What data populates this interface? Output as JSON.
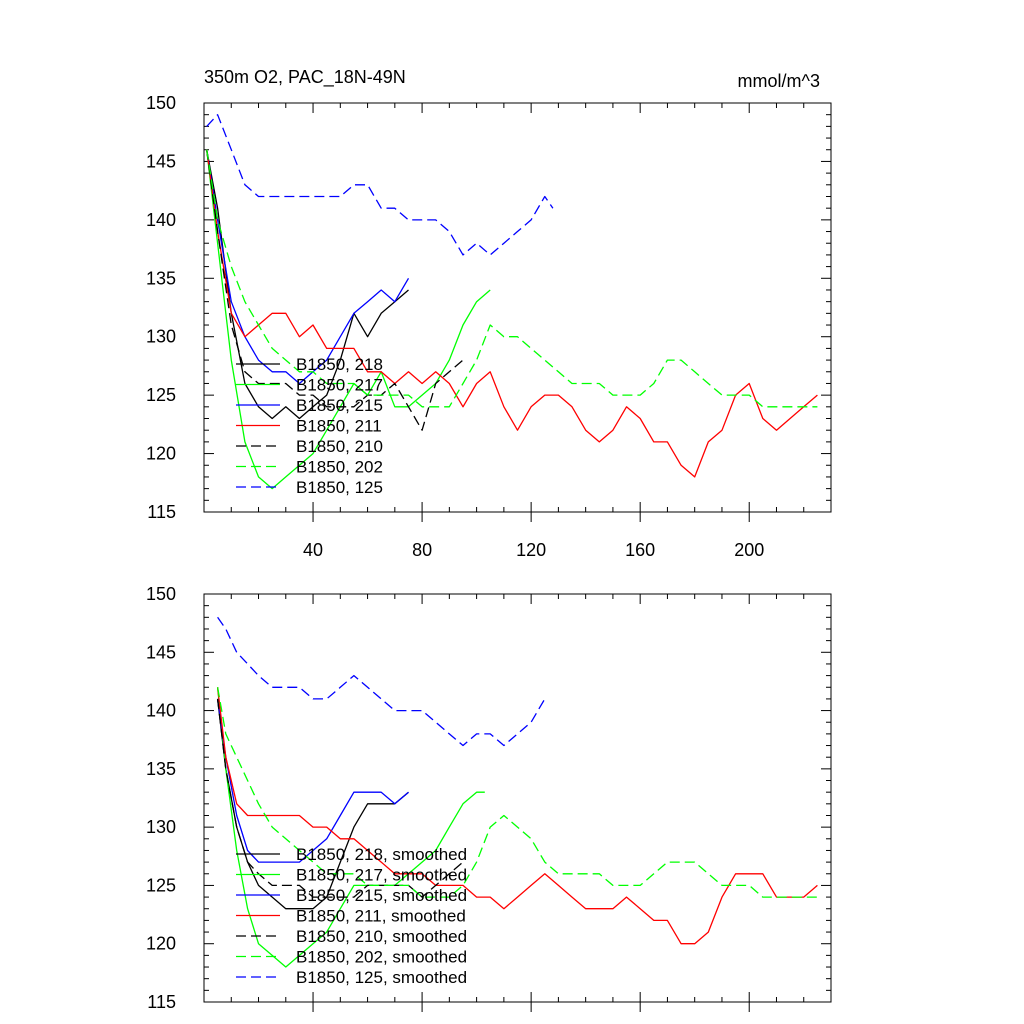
{
  "chart_data": [
    {
      "type": "line",
      "title_left": "350m O2, PAC_18N-49N",
      "title_right": "mmol/m^3",
      "xlabel": "",
      "ylabel": "",
      "xlim": [
        0,
        230
      ],
      "ylim": [
        115,
        150
      ],
      "x_ticks": [
        40,
        80,
        120,
        160,
        200
      ],
      "x_tick_labels": [
        "40",
        "80",
        "120",
        "160",
        "200"
      ],
      "y_ticks": [
        115,
        120,
        125,
        130,
        135,
        140,
        145,
        150
      ],
      "y_tick_labels": [
        "115",
        "120",
        "125",
        "130",
        "135",
        "140",
        "145",
        "150"
      ],
      "legend_position": "lower-left",
      "series": [
        {
          "name": "B1850, 218",
          "color": "#000000",
          "dash": "solid",
          "x": [
            1,
            5,
            10,
            15,
            20,
            25,
            30,
            35,
            40,
            45,
            50,
            55,
            60,
            65,
            70,
            75
          ],
          "y": [
            146,
            141,
            132,
            126,
            124,
            123,
            124,
            123,
            124,
            125,
            128,
            132,
            130,
            132,
            133,
            134
          ]
        },
        {
          "name": "B1850, 217",
          "color": "#00ff00",
          "dash": "solid",
          "x": [
            1,
            5,
            10,
            15,
            20,
            25,
            30,
            35,
            40,
            45,
            50,
            55,
            60,
            65,
            70,
            75,
            80,
            85,
            90,
            95,
            100,
            105
          ],
          "y": [
            146,
            138,
            128,
            121,
            118,
            117,
            118,
            119,
            120,
            122,
            124,
            126,
            125,
            127,
            124,
            124,
            125,
            126,
            128,
            131,
            133,
            134
          ]
        },
        {
          "name": "B1850, 215",
          "color": "#0000ff",
          "dash": "solid",
          "x": [
            1,
            5,
            10,
            15,
            20,
            25,
            30,
            35,
            40,
            45,
            50,
            55,
            60,
            65,
            70,
            75
          ],
          "y": [
            146,
            140,
            133,
            130,
            128,
            127,
            127,
            126,
            127,
            128,
            130,
            132,
            133,
            134,
            133,
            135
          ]
        },
        {
          "name": "B1850, 211",
          "color": "#ff0000",
          "dash": "solid",
          "x": [
            1,
            5,
            10,
            15,
            20,
            25,
            30,
            35,
            40,
            45,
            50,
            55,
            60,
            65,
            70,
            75,
            80,
            85,
            90,
            95,
            100,
            105,
            110,
            115,
            120,
            125,
            130,
            135,
            140,
            145,
            150,
            155,
            160,
            165,
            170,
            175,
            180,
            185,
            190,
            195,
            200,
            205,
            210,
            215,
            220,
            225
          ],
          "y": [
            146,
            139,
            132,
            130,
            131,
            132,
            132,
            130,
            131,
            129,
            129,
            129,
            127,
            127,
            126,
            127,
            126,
            127,
            126,
            124,
            126,
            127,
            124,
            122,
            124,
            125,
            125,
            124,
            122,
            121,
            122,
            124,
            123,
            121,
            121,
            119,
            118,
            121,
            122,
            125,
            126,
            123,
            122,
            123,
            124,
            125
          ]
        },
        {
          "name": "B1850, 210",
          "color": "#000000",
          "dash": "dashed",
          "x": [
            1,
            5,
            10,
            15,
            20,
            25,
            30,
            35,
            40,
            45,
            50,
            55,
            60,
            65,
            70,
            75,
            80,
            85,
            90,
            95
          ],
          "y": [
            146,
            139,
            131,
            127,
            126,
            126,
            126,
            125,
            125,
            124,
            124,
            124,
            125,
            125,
            126,
            124,
            122,
            126,
            127,
            128
          ]
        },
        {
          "name": "B1850, 202",
          "color": "#00ff00",
          "dash": "dashed",
          "x": [
            1,
            5,
            10,
            15,
            20,
            25,
            30,
            35,
            40,
            45,
            50,
            55,
            60,
            65,
            70,
            75,
            80,
            85,
            90,
            95,
            100,
            105,
            110,
            115,
            120,
            125,
            130,
            135,
            140,
            145,
            150,
            155,
            160,
            165,
            170,
            175,
            180,
            185,
            190,
            195,
            200,
            205,
            210,
            215,
            220,
            225
          ],
          "y": [
            146,
            140,
            136,
            133,
            131,
            129,
            128,
            127,
            127,
            126,
            126,
            126,
            125,
            125,
            125,
            125,
            124,
            124,
            124,
            126,
            128,
            131,
            130,
            130,
            129,
            128,
            127,
            126,
            126,
            126,
            125,
            125,
            125,
            126,
            128,
            128,
            127,
            126,
            125,
            125,
            125,
            124,
            124,
            124,
            124,
            124
          ]
        },
        {
          "name": "B1850, 125",
          "color": "#0000ff",
          "dash": "dashed",
          "x": [
            1,
            5,
            10,
            15,
            20,
            25,
            30,
            35,
            40,
            45,
            50,
            55,
            60,
            65,
            70,
            75,
            80,
            85,
            90,
            95,
            100,
            105,
            110,
            115,
            120,
            125,
            128
          ],
          "y": [
            148,
            149,
            146,
            143,
            142,
            142,
            142,
            142,
            142,
            142,
            142,
            143,
            143,
            141,
            141,
            140,
            140,
            140,
            139,
            137,
            138,
            137,
            138,
            139,
            140,
            142,
            141
          ]
        }
      ]
    },
    {
      "type": "line",
      "title_left": "",
      "title_right": "",
      "xlabel": "",
      "ylabel": "",
      "xlim": [
        0,
        230
      ],
      "ylim": [
        115,
        150
      ],
      "x_ticks": [
        40,
        80,
        120,
        160,
        200
      ],
      "x_tick_labels": [],
      "y_ticks": [
        115,
        120,
        125,
        130,
        135,
        140,
        145,
        150
      ],
      "y_tick_labels": [
        "115",
        "120",
        "125",
        "130",
        "135",
        "140",
        "145",
        "150"
      ],
      "legend_position": "lower-left",
      "series": [
        {
          "name": "B1850, 218, smoothed",
          "color": "#000000",
          "dash": "solid",
          "x": [
            5,
            8,
            12,
            16,
            20,
            25,
            30,
            35,
            40,
            45,
            50,
            55,
            60,
            65,
            70,
            75
          ],
          "y": [
            141,
            135,
            130,
            127,
            125,
            124,
            123,
            123,
            123,
            124,
            127,
            130,
            132,
            132,
            132,
            133
          ]
        },
        {
          "name": "B1850, 217, smoothed",
          "color": "#00ff00",
          "dash": "solid",
          "x": [
            5,
            8,
            12,
            16,
            20,
            25,
            30,
            35,
            40,
            45,
            50,
            55,
            60,
            65,
            70,
            75,
            80,
            85,
            90,
            95,
            100,
            103
          ],
          "y": [
            142,
            135,
            128,
            123,
            120,
            119,
            118,
            119,
            120,
            121,
            123,
            125,
            125,
            125,
            125,
            126,
            127,
            128,
            130,
            132,
            133,
            133
          ]
        },
        {
          "name": "B1850, 215, smoothed",
          "color": "#0000ff",
          "dash": "solid",
          "x": [
            5,
            8,
            12,
            16,
            20,
            25,
            30,
            35,
            40,
            45,
            50,
            55,
            60,
            65,
            70,
            75
          ],
          "y": [
            141,
            136,
            131,
            128,
            127,
            127,
            127,
            127,
            128,
            129,
            131,
            133,
            133,
            133,
            132,
            133
          ]
        },
        {
          "name": "B1850, 211, smoothed",
          "color": "#ff0000",
          "dash": "solid",
          "x": [
            5,
            8,
            12,
            16,
            20,
            25,
            30,
            35,
            40,
            45,
            50,
            55,
            60,
            65,
            70,
            75,
            80,
            85,
            90,
            95,
            100,
            105,
            110,
            115,
            120,
            125,
            130,
            135,
            140,
            145,
            150,
            155,
            160,
            165,
            170,
            175,
            180,
            185,
            190,
            195,
            200,
            205,
            210,
            215,
            220,
            225
          ],
          "y": [
            142,
            136,
            132,
            131,
            131,
            131,
            131,
            131,
            130,
            130,
            129,
            129,
            128,
            127,
            126,
            126,
            126,
            125,
            125,
            125,
            124,
            124,
            123,
            124,
            125,
            126,
            125,
            124,
            123,
            123,
            123,
            124,
            123,
            122,
            122,
            120,
            120,
            121,
            124,
            126,
            126,
            126,
            124,
            124,
            124,
            125
          ]
        },
        {
          "name": "B1850, 210, smoothed",
          "color": "#000000",
          "dash": "dashed",
          "x": [
            5,
            8,
            12,
            16,
            20,
            25,
            30,
            35,
            40,
            45,
            50,
            55,
            60,
            65,
            70,
            75,
            80,
            85,
            90,
            95
          ],
          "y": [
            141,
            135,
            130,
            127,
            126,
            125,
            125,
            125,
            124,
            124,
            124,
            124,
            125,
            125,
            125,
            125,
            124,
            125,
            126,
            127
          ]
        },
        {
          "name": "B1850, 202, smoothed",
          "color": "#00ff00",
          "dash": "dashed",
          "x": [
            5,
            8,
            12,
            16,
            20,
            25,
            30,
            35,
            40,
            45,
            50,
            55,
            60,
            65,
            70,
            75,
            80,
            85,
            90,
            95,
            100,
            105,
            110,
            115,
            120,
            125,
            130,
            135,
            140,
            145,
            150,
            155,
            160,
            165,
            170,
            175,
            180,
            185,
            190,
            195,
            200,
            205,
            210,
            215,
            220,
            225
          ],
          "y": [
            142,
            138,
            136,
            134,
            132,
            130,
            129,
            128,
            127,
            126,
            126,
            126,
            125,
            125,
            125,
            125,
            124,
            124,
            124,
            125,
            127,
            130,
            131,
            130,
            129,
            127,
            126,
            126,
            126,
            126,
            125,
            125,
            125,
            126,
            127,
            127,
            127,
            126,
            125,
            125,
            125,
            124,
            124,
            124,
            124,
            124
          ]
        },
        {
          "name": "B1850, 125, smoothed",
          "color": "#0000ff",
          "dash": "dashed",
          "x": [
            5,
            8,
            12,
            16,
            20,
            25,
            30,
            35,
            40,
            45,
            50,
            55,
            60,
            65,
            70,
            75,
            80,
            85,
            90,
            95,
            100,
            105,
            110,
            115,
            120,
            125
          ],
          "y": [
            148,
            147,
            145,
            144,
            143,
            142,
            142,
            142,
            141,
            141,
            142,
            143,
            142,
            141,
            140,
            140,
            140,
            139,
            138,
            137,
            138,
            138,
            137,
            138,
            139,
            141
          ]
        }
      ]
    }
  ]
}
